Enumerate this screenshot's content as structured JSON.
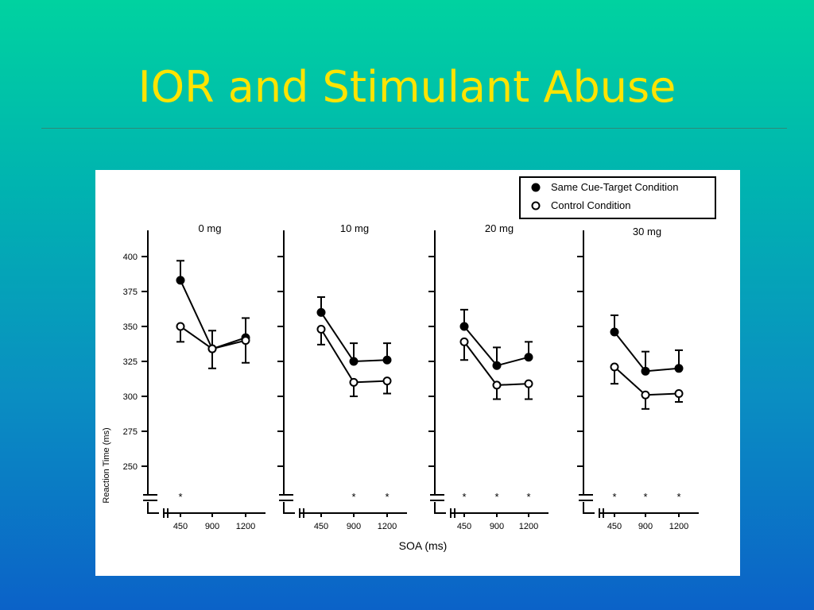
{
  "slide": {
    "title": "IOR and Stimulant Abuse"
  },
  "colors": {
    "title": "#ffe400",
    "background_top": "#00d2a0",
    "background_bottom": "#0b62c8"
  },
  "chart_data": {
    "type": "line",
    "xlabel": "SOA (ms)",
    "ylabel": "Reaction Time (ms)",
    "ylim": [
      232,
      410
    ],
    "yticks": [
      250,
      275,
      300,
      325,
      350,
      375,
      400
    ],
    "x": [
      450,
      900,
      1200
    ],
    "x_tick_labels": [
      "450",
      "900",
      "1200"
    ],
    "legend": {
      "position": "top-right",
      "entries": [
        "Same Cue-Target Condition",
        "Control Condition"
      ]
    },
    "panels": [
      {
        "title": "0 mg",
        "series": [
          {
            "name": "Same Cue-Target Condition",
            "marker": "filled",
            "values": [
              383,
              334,
              342
            ],
            "errors": [
              14,
              13,
              14
            ]
          },
          {
            "name": "Control Condition",
            "marker": "open",
            "values": [
              350,
              334,
              340
            ],
            "errors": [
              11,
              14,
              16
            ]
          }
        ],
        "significance": [
          "*",
          "",
          ""
        ]
      },
      {
        "title": "10 mg",
        "series": [
          {
            "name": "Same Cue-Target Condition",
            "marker": "filled",
            "values": [
              360,
              325,
              326
            ],
            "errors": [
              11,
              13,
              12
            ]
          },
          {
            "name": "Control Condition",
            "marker": "open",
            "values": [
              348,
              310,
              311
            ],
            "errors": [
              11,
              10,
              9
            ]
          }
        ],
        "significance": [
          "",
          "*",
          "*"
        ]
      },
      {
        "title": "20 mg",
        "series": [
          {
            "name": "Same Cue-Target Condition",
            "marker": "filled",
            "values": [
              350,
              322,
              328
            ],
            "errors": [
              12,
              13,
              11
            ]
          },
          {
            "name": "Control Condition",
            "marker": "open",
            "values": [
              339,
              308,
              309
            ],
            "errors": [
              13,
              10,
              11
            ]
          }
        ],
        "significance": [
          "*",
          "*",
          "*"
        ]
      },
      {
        "title": "30 mg",
        "series": [
          {
            "name": "Same Cue-Target Condition",
            "marker": "filled",
            "values": [
              346,
              318,
              320
            ],
            "errors": [
              12,
              14,
              13
            ]
          },
          {
            "name": "Control Condition",
            "marker": "open",
            "values": [
              321,
              301,
              302
            ],
            "errors": [
              12,
              10,
              6
            ]
          }
        ],
        "significance": [
          "*",
          "*",
          "*"
        ]
      }
    ]
  }
}
